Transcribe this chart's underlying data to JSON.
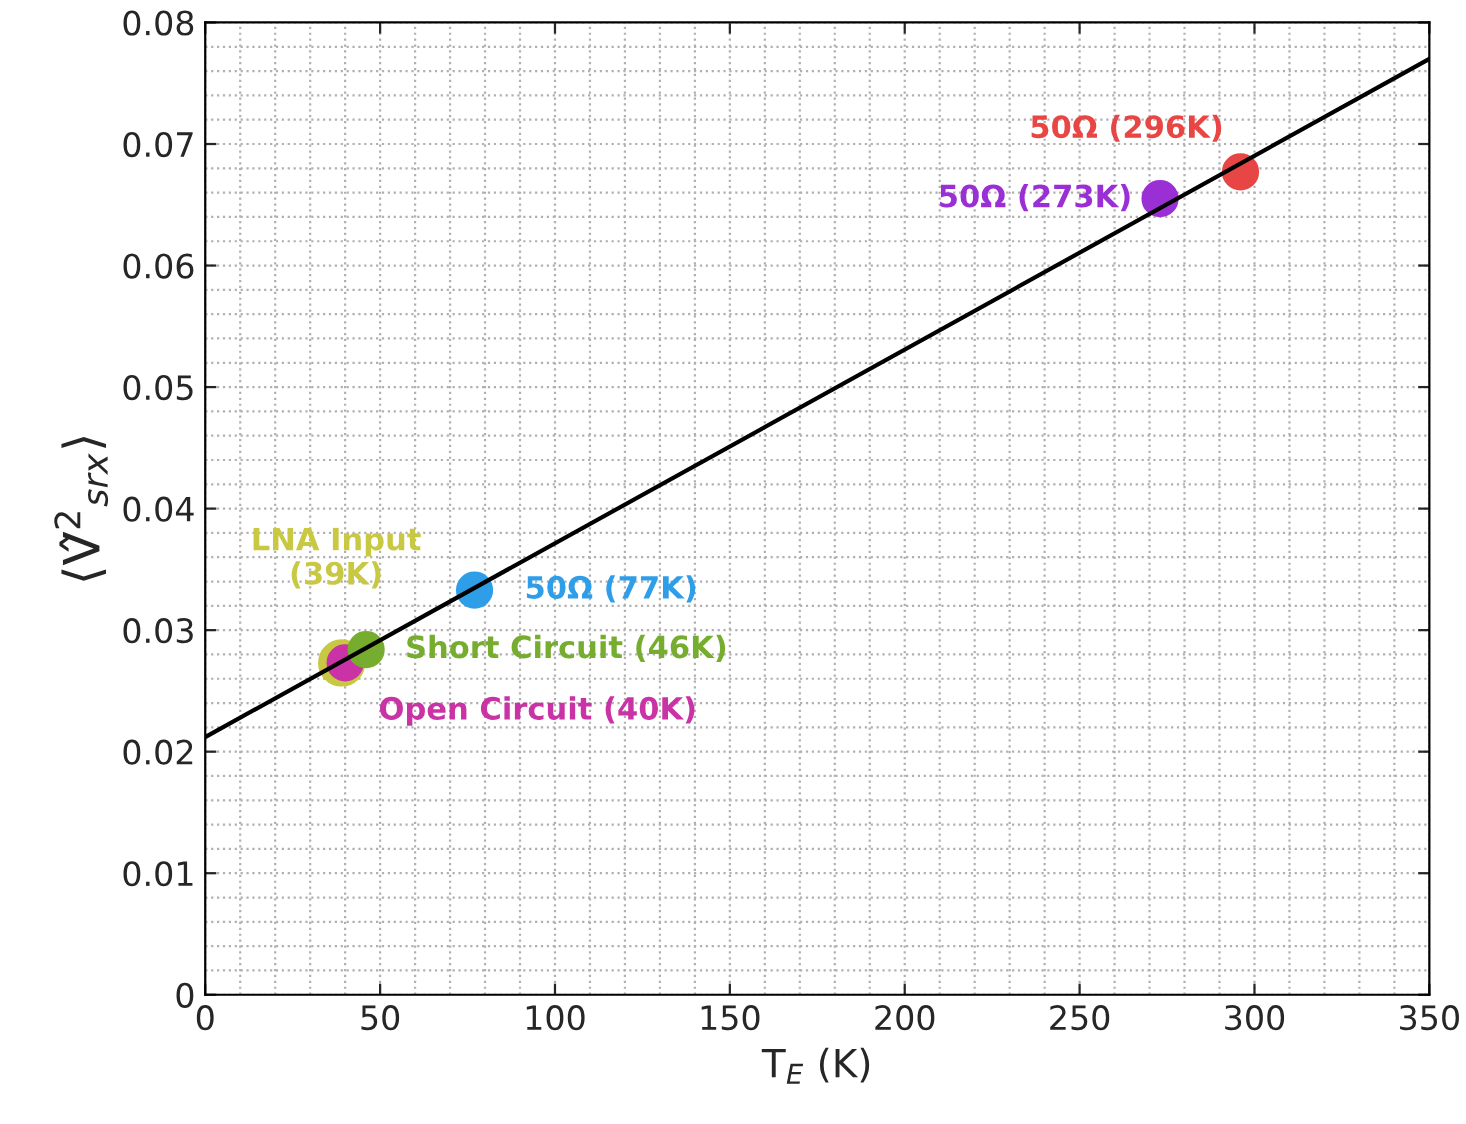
{
  "chart_data": {
    "type": "scatter",
    "xlabel": "T$_{E}$ (K)",
    "ylabel": "⟨V̂$^{2}$$_{srx}$⟩",
    "xlim": [
      0,
      350
    ],
    "xticks": [
      0,
      50,
      100,
      150,
      200,
      250,
      300,
      350
    ],
    "ylim": [
      0,
      0.08
    ],
    "yticks": [
      0,
      0.01,
      0.02,
      0.03,
      0.04,
      0.05,
      0.06,
      0.07,
      0.08
    ],
    "grid": true,
    "legend": false,
    "series": [
      {
        "marker": "circle",
        "x": [
          39,
          40,
          46,
          77,
          273,
          296
        ],
        "values": [
          0.0273,
          0.0273,
          0.0284,
          0.0333,
          0.0655,
          0.0677
        ],
        "sizes": [
          1,
          0.6,
          0.6,
          0.6,
          0.6,
          0.6
        ],
        "colors": [
          "#c8c843",
          "#c933a5",
          "#76ad2f",
          "#2f9ee9",
          "#9a2fd6",
          "#e84545"
        ]
      },
      {
        "type": "line",
        "x": [
          0,
          350
        ],
        "values": [
          0.0212,
          0.077
        ],
        "color": "#000000",
        "line_style": "solid"
      }
    ],
    "annotations": [
      {
        "text": "LNA Input\n(39K)",
        "x": 39,
        "y": 0.0273
      },
      {
        "text": "Open Circuit (40K)",
        "x": 40,
        "y": 0.0273
      },
      {
        "text": "Short Circuit (46K)",
        "x": 46,
        "y": 0.0284
      },
      {
        "text": "50Ω (77K)",
        "x": 77,
        "y": 0.0333
      },
      {
        "text": "50Ω (273K)",
        "x": 273,
        "y": 0.0655
      },
      {
        "text": "50Ω (296K)",
        "x": 296,
        "y": 0.0677
      }
    ]
  }
}
